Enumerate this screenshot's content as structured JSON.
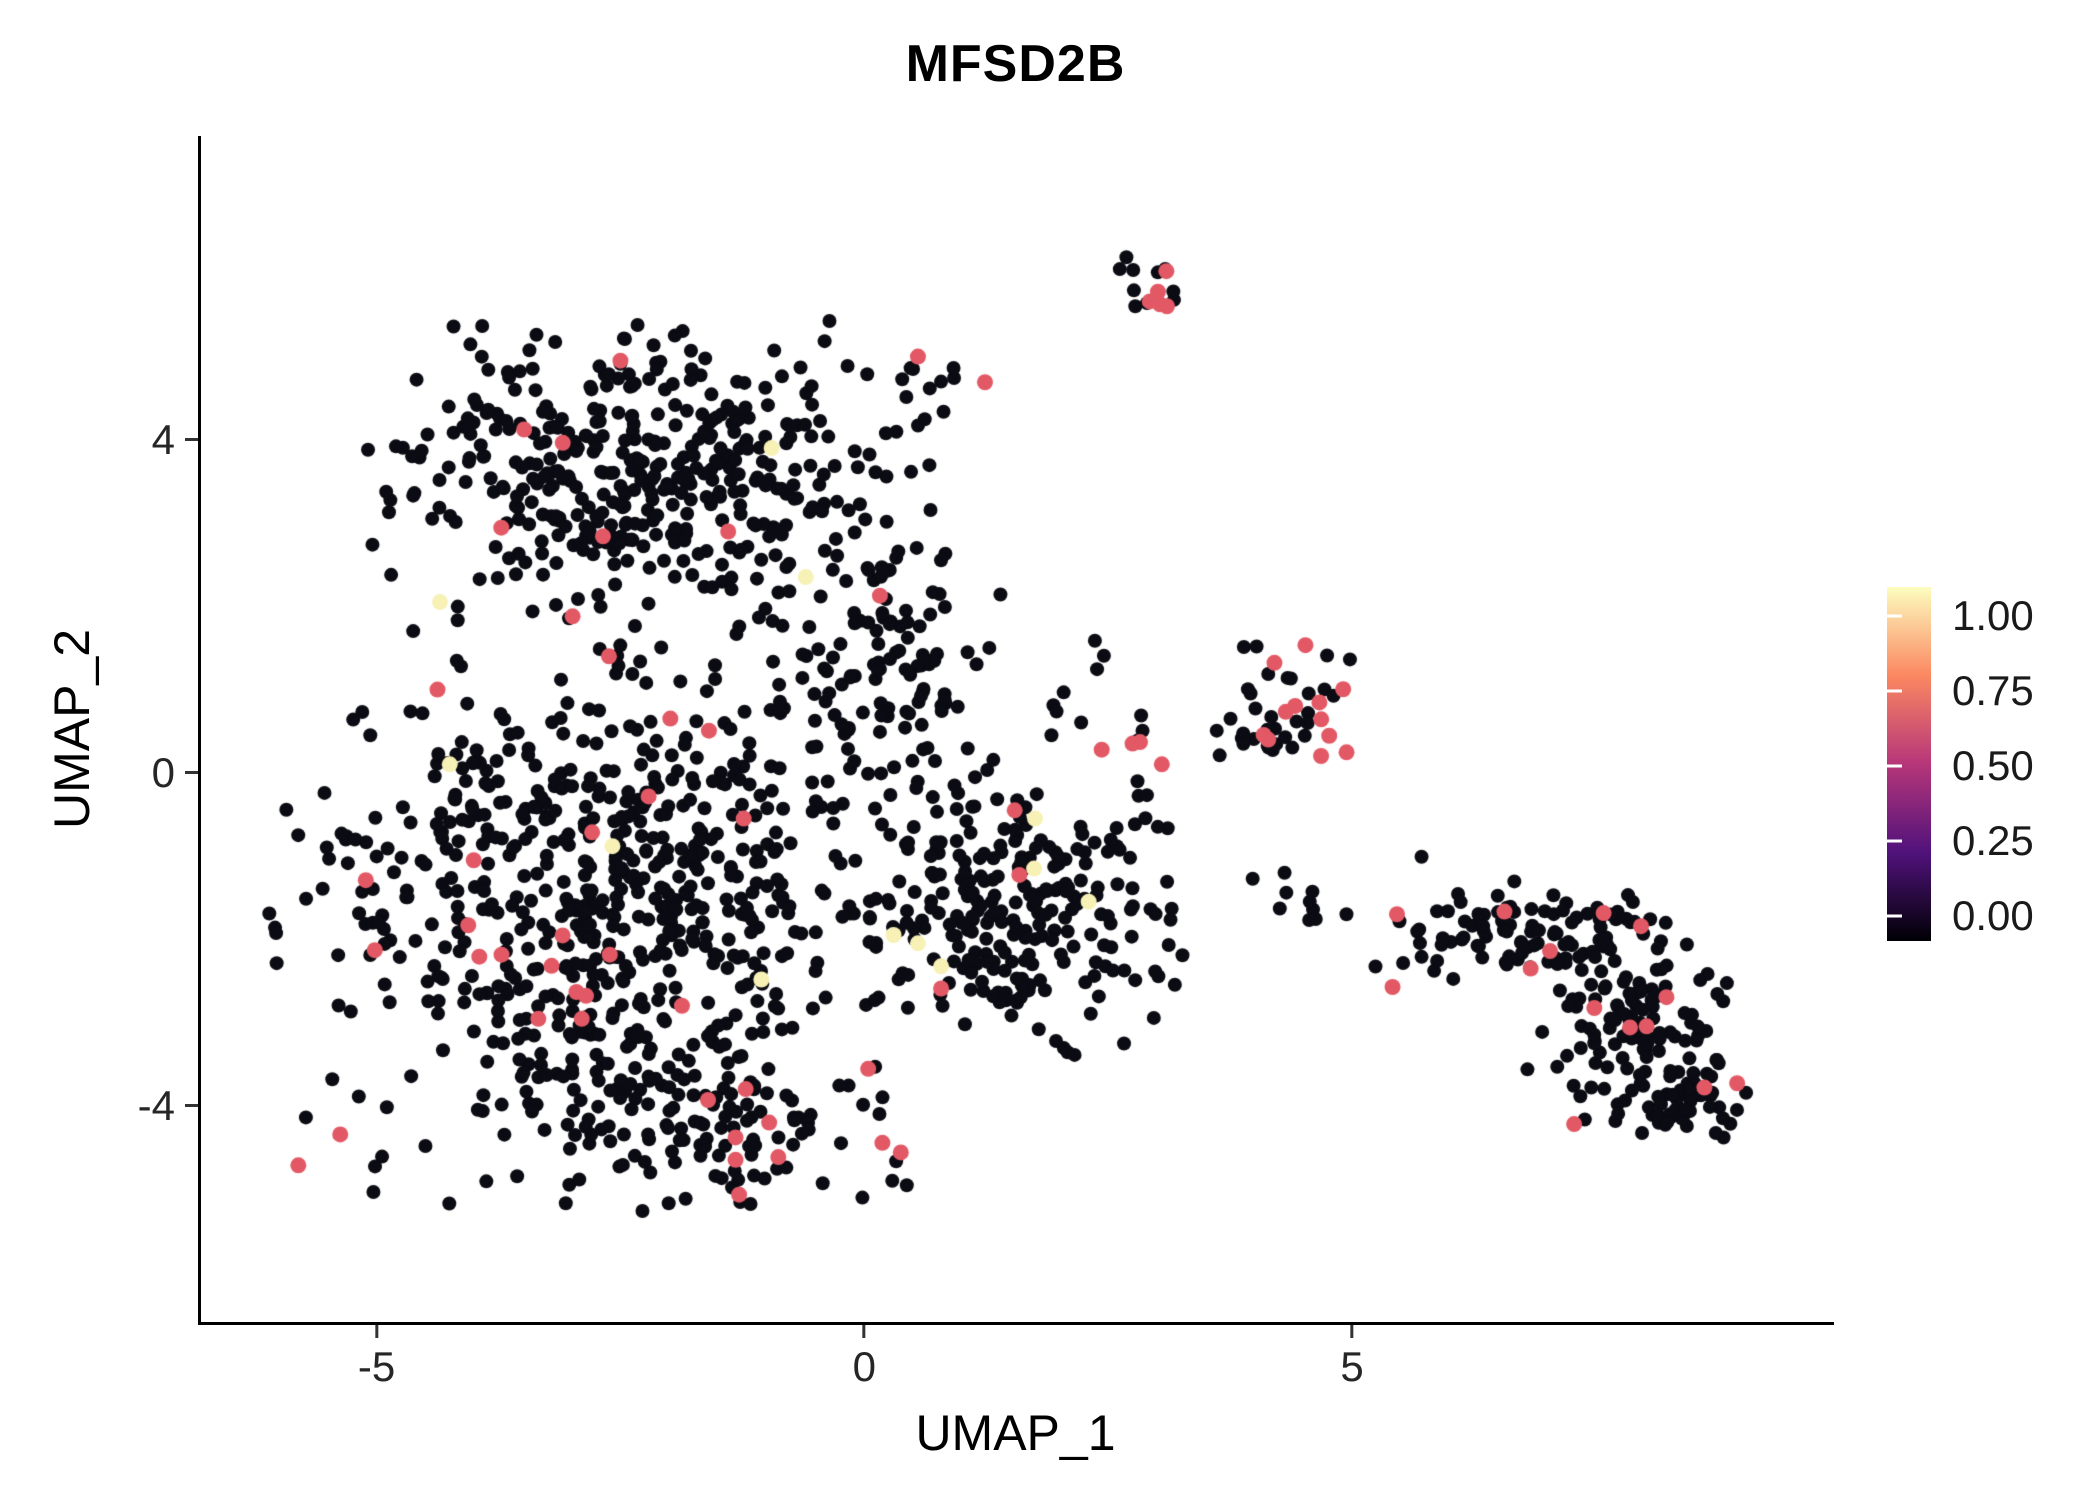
{
  "chart_data": {
    "type": "scatter",
    "title": "MFSD2B",
    "xlabel": "UMAP_1",
    "ylabel": "UMAP_2",
    "xlim": [
      -6.8,
      9.9
    ],
    "ylim": [
      -6.6,
      7.65
    ],
    "grid": false,
    "legend_position": "right",
    "x_ticks": [
      {
        "value": -5,
        "label": "-5"
      },
      {
        "value": 0,
        "label": "0"
      },
      {
        "value": 5,
        "label": "5"
      }
    ],
    "y_ticks": [
      {
        "value": 4,
        "label": "4"
      },
      {
        "value": 0,
        "label": "0"
      },
      {
        "value": -4,
        "label": "-4"
      }
    ],
    "legend": {
      "ticks": [
        {
          "value": 1.0,
          "label": "1.00"
        },
        {
          "value": 0.75,
          "label": "0.75"
        },
        {
          "value": 0.5,
          "label": "0.50"
        },
        {
          "value": 0.25,
          "label": "0.25"
        },
        {
          "value": 0.0,
          "label": "0.00"
        }
      ],
      "colormap": "magma",
      "gradient": [
        {
          "pos": 0.0,
          "color": "#000004"
        },
        {
          "pos": 0.25,
          "color": "#50127b"
        },
        {
          "pos": 0.5,
          "color": "#b63679"
        },
        {
          "pos": 0.75,
          "color": "#fb8861"
        },
        {
          "pos": 1.0,
          "color": "#fcfdbf"
        }
      ]
    },
    "point_colors": {
      "low": "#0b0b13",
      "mid": "#e25965",
      "high": "#f7f1b6"
    },
    "point_radius_low": 7,
    "point_radius_colored": 8,
    "clusters": [
      {
        "name": "upper-left-blob",
        "cx": -2.3,
        "cy": 3.6,
        "sx": 1.25,
        "sy": 0.78,
        "count": 430,
        "high": 0,
        "mid": 6,
        "seed": 11
      },
      {
        "name": "lower-left-blob",
        "cx": -2.7,
        "cy": -1.6,
        "sx": 1.45,
        "sy": 1.5,
        "count": 720,
        "high": 2,
        "mid": 28,
        "seed": 22
      },
      {
        "name": "bottom-rim",
        "cx": -1.5,
        "cy": -4.3,
        "sx": 0.85,
        "sy": 0.45,
        "count": 90,
        "high": 0,
        "mid": 5,
        "seed": 23
      },
      {
        "name": "center-bridge",
        "cx": 0.2,
        "cy": 1.3,
        "sx": 0.55,
        "sy": 0.85,
        "count": 120,
        "high": 0,
        "mid": 1,
        "seed": 33
      },
      {
        "name": "center-right-lobe",
        "cx": 1.5,
        "cy": -1.7,
        "sx": 0.75,
        "sy": 0.78,
        "count": 260,
        "high": 2,
        "mid": 3,
        "seed": 44
      },
      {
        "name": "top-small-cluster",
        "cx": 2.85,
        "cy": 5.78,
        "sx": 0.18,
        "sy": 0.2,
        "count": 16,
        "high": 0,
        "mid": 5,
        "seed": 55
      },
      {
        "name": "top-trail",
        "cx": 0.55,
        "cy": 4.72,
        "sx": 0.35,
        "sy": 0.16,
        "count": 9,
        "high": 0,
        "mid": 1,
        "seed": 66
      },
      {
        "name": "right-middle-cluster",
        "cx": 4.35,
        "cy": 0.8,
        "sx": 0.33,
        "sy": 0.42,
        "count": 44,
        "high": 0,
        "mid": 12,
        "seed": 77
      },
      {
        "name": "right-middle-sparse",
        "cx": 2.55,
        "cy": 0.7,
        "sx": 0.5,
        "sy": 0.45,
        "count": 14,
        "high": 0,
        "mid": 2,
        "seed": 88
      },
      {
        "name": "right-bridge",
        "cx": 4.5,
        "cy": -1.6,
        "sx": 0.8,
        "sy": 0.25,
        "count": 13,
        "high": 0,
        "mid": 0,
        "seed": 99
      },
      {
        "name": "far-right-arm",
        "cx": 6.9,
        "cy": -1.95,
        "sx": 0.7,
        "sy": 0.28,
        "count": 115,
        "high": 0,
        "mid": 7,
        "seed": 101
      },
      {
        "name": "far-right-body",
        "cx": 7.9,
        "cy": -3.2,
        "sx": 0.5,
        "sy": 0.5,
        "count": 120,
        "high": 0,
        "mid": 5,
        "seed": 102
      },
      {
        "name": "far-right-tip",
        "cx": 8.5,
        "cy": -4.0,
        "sx": 0.3,
        "sy": 0.18,
        "count": 40,
        "high": 0,
        "mid": 2,
        "seed": 103
      }
    ],
    "extra_points": [
      {
        "x": -4.35,
        "y": 2.05,
        "level": "high"
      },
      {
        "x": -4.25,
        "y": 0.1,
        "level": "high"
      },
      {
        "x": -0.95,
        "y": 3.9,
        "level": "high"
      },
      {
        "x": -0.6,
        "y": 2.35,
        "level": "high"
      },
      {
        "x": 1.75,
        "y": -0.55,
        "level": "high"
      },
      {
        "x": 2.3,
        "y": -1.55,
        "level": "high"
      },
      {
        "x": 0.3,
        "y": -1.95,
        "level": "high"
      },
      {
        "x": 0.55,
        "y": -2.05,
        "level": "high"
      },
      {
        "x": 3.05,
        "y": 0.1,
        "level": "mid"
      },
      {
        "x": 2.75,
        "y": 0.35,
        "level": "mid"
      },
      {
        "x": 0.55,
        "y": 5.0,
        "level": "mid"
      },
      {
        "x": -2.5,
        "y": 4.95,
        "level": "mid"
      }
    ]
  }
}
